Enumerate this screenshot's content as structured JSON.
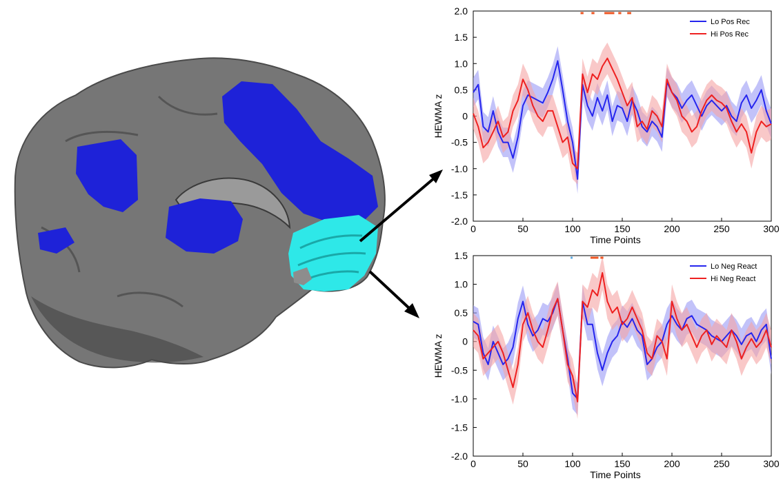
{
  "colors": {
    "lo": "#2525ee",
    "hi": "#ee2020",
    "lo_band": "#9a9af5",
    "hi_band": "#f5a3a3",
    "lo_sig": "#5aa8e0",
    "hi_sig": "#ee5522",
    "brain_gray": "#7a7a7a",
    "brain_blue": "#1e22d8",
    "brain_cyan": "#2ee8e8"
  },
  "brain": {
    "view": "sagittal-medial",
    "highlight_region": "cyan",
    "other_regions": "blue"
  },
  "chart_data": [
    {
      "type": "line",
      "title": "",
      "xlabel": "Time Points",
      "ylabel": "HEWMA z",
      "xlim": [
        0,
        300
      ],
      "ylim": [
        -2.0,
        2.0
      ],
      "xticks": [
        "0",
        "50",
        "100",
        "150",
        "200",
        "250",
        "300"
      ],
      "yticks": [
        "2.0",
        "1.5",
        "1.0",
        "0.5",
        "0",
        "-0.5",
        "-1.0",
        "-1.5",
        "-2.0"
      ],
      "legend_position": "top-right",
      "grid": false,
      "x": [
        0,
        5,
        10,
        15,
        20,
        25,
        30,
        35,
        40,
        45,
        50,
        55,
        60,
        65,
        70,
        75,
        80,
        85,
        90,
        95,
        100,
        105,
        110,
        115,
        120,
        125,
        130,
        135,
        140,
        145,
        150,
        155,
        160,
        165,
        170,
        175,
        180,
        185,
        190,
        195,
        200,
        205,
        210,
        215,
        220,
        225,
        230,
        235,
        240,
        245,
        250,
        255,
        260,
        265,
        270,
        275,
        280,
        285,
        290,
        295,
        300
      ],
      "series": [
        {
          "name": "Lo Pos Rec",
          "color_key": "lo",
          "values": [
            0.45,
            0.6,
            -0.2,
            -0.3,
            0.1,
            -0.3,
            -0.5,
            -0.5,
            -0.8,
            -0.4,
            0.2,
            0.4,
            0.35,
            0.3,
            0.25,
            0.45,
            0.7,
            1.05,
            0.5,
            -0.1,
            -0.5,
            -1.2,
            0.6,
            0.2,
            0.0,
            0.35,
            0.1,
            0.4,
            -0.1,
            0.2,
            0.15,
            -0.1,
            0.3,
            0.1,
            -0.2,
            -0.3,
            -0.1,
            -0.2,
            -0.4,
            0.65,
            0.45,
            0.35,
            0.15,
            0.3,
            0.4,
            0.2,
            0.0,
            0.2,
            0.3,
            0.2,
            0.1,
            0.2,
            0.0,
            -0.1,
            0.25,
            0.4,
            0.15,
            0.3,
            0.5,
            0.1,
            -0.15
          ],
          "band": 0.28
        },
        {
          "name": "Hi Pos Rec",
          "color_key": "hi",
          "values": [
            0.05,
            -0.2,
            -0.6,
            -0.5,
            -0.3,
            -0.1,
            -0.4,
            -0.3,
            0.1,
            0.3,
            0.7,
            0.5,
            0.2,
            0.0,
            -0.1,
            0.1,
            0.1,
            -0.2,
            -0.5,
            -0.4,
            -0.9,
            -1.0,
            0.8,
            0.45,
            0.8,
            0.7,
            0.95,
            1.1,
            0.9,
            0.7,
            0.45,
            0.2,
            0.35,
            -0.2,
            -0.1,
            -0.25,
            0.1,
            0.0,
            -0.2,
            0.7,
            0.45,
            0.3,
            0.0,
            -0.1,
            -0.3,
            -0.2,
            0.1,
            0.3,
            0.4,
            0.3,
            0.25,
            0.15,
            -0.1,
            -0.3,
            -0.15,
            -0.3,
            -0.7,
            -0.3,
            -0.1,
            -0.2,
            -0.15
          ],
          "band": 0.3
        }
      ],
      "significance_marks": [
        {
          "color_key": "hi_sig",
          "x_start": 108,
          "x_end": 111
        },
        {
          "color_key": "hi_sig",
          "x_start": 119,
          "x_end": 122
        },
        {
          "color_key": "hi_sig",
          "x_start": 132,
          "x_end": 142
        },
        {
          "color_key": "hi_sig",
          "x_start": 146,
          "x_end": 149
        },
        {
          "color_key": "hi_sig",
          "x_start": 155,
          "x_end": 159
        }
      ]
    },
    {
      "type": "line",
      "title": "",
      "xlabel": "Time Points",
      "ylabel": "HEWMA z",
      "xlim": [
        0,
        300
      ],
      "ylim": [
        -2.0,
        1.5
      ],
      "xticks": [
        "0",
        "50",
        "100",
        "150",
        "200",
        "250",
        "300"
      ],
      "yticks": [
        "1.5",
        "1.0",
        "0.5",
        "0",
        "-0.5",
        "-1.0",
        "-1.5",
        "-2.0"
      ],
      "legend_position": "top-right",
      "grid": false,
      "x": [
        0,
        5,
        10,
        15,
        20,
        25,
        30,
        35,
        40,
        45,
        50,
        55,
        60,
        65,
        70,
        75,
        80,
        85,
        90,
        95,
        100,
        105,
        110,
        115,
        120,
        125,
        130,
        135,
        140,
        145,
        150,
        155,
        160,
        165,
        170,
        175,
        180,
        185,
        190,
        195,
        200,
        205,
        210,
        215,
        220,
        225,
        230,
        235,
        240,
        245,
        250,
        255,
        260,
        265,
        270,
        275,
        280,
        285,
        290,
        295,
        300
      ],
      "series": [
        {
          "name": "Lo Neg React",
          "color_key": "lo",
          "values": [
            0.35,
            0.3,
            -0.2,
            -0.4,
            0.0,
            -0.2,
            -0.4,
            -0.3,
            -0.1,
            0.4,
            0.7,
            0.3,
            0.1,
            0.2,
            0.4,
            0.35,
            0.5,
            0.75,
            0.2,
            -0.3,
            -0.9,
            -1.0,
            0.7,
            0.3,
            0.3,
            -0.2,
            -0.5,
            -0.2,
            0.0,
            0.1,
            0.35,
            0.25,
            0.4,
            0.2,
            0.1,
            -0.4,
            -0.3,
            -0.1,
            0.0,
            0.3,
            0.45,
            0.3,
            0.2,
            0.4,
            0.45,
            0.3,
            0.25,
            0.2,
            0.1,
            0.05,
            0.0,
            0.1,
            0.2,
            0.1,
            -0.05,
            0.1,
            0.15,
            0.0,
            0.2,
            0.3,
            -0.3
          ],
          "band": 0.28
        },
        {
          "name": "Hi Neg React",
          "color_key": "hi",
          "values": [
            0.2,
            0.1,
            -0.3,
            -0.2,
            -0.1,
            0.0,
            -0.2,
            -0.5,
            -0.8,
            -0.4,
            0.3,
            0.5,
            0.2,
            0.0,
            -0.1,
            0.2,
            0.55,
            0.75,
            0.2,
            -0.4,
            -0.6,
            -1.05,
            0.7,
            0.6,
            0.9,
            0.8,
            1.2,
            0.7,
            0.5,
            0.6,
            0.3,
            0.4,
            0.6,
            0.4,
            0.2,
            -0.2,
            -0.3,
            0.1,
            0.0,
            -0.3,
            0.7,
            0.4,
            0.2,
            0.3,
            0.1,
            -0.1,
            0.1,
            0.2,
            -0.05,
            0.1,
            0.0,
            -0.1,
            0.2,
            0.0,
            -0.3,
            -0.1,
            0.05,
            -0.1,
            0.0,
            0.2,
            -0.1
          ],
          "band": 0.3
        }
      ],
      "significance_marks": [
        {
          "color_key": "lo_sig",
          "x_start": 98,
          "x_end": 100
        },
        {
          "color_key": "hi_sig",
          "x_start": 118,
          "x_end": 126
        },
        {
          "color_key": "hi_sig",
          "x_start": 128,
          "x_end": 131
        }
      ]
    }
  ]
}
